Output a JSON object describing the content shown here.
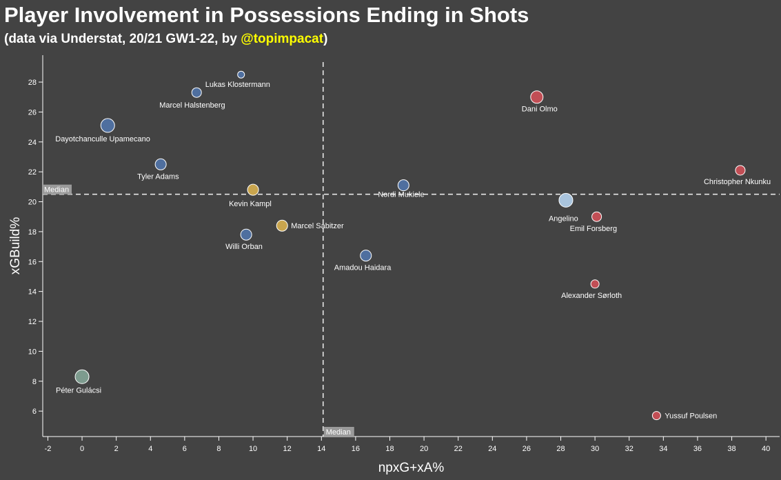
{
  "header": {
    "title": "Player Involvement in Possessions Ending in Shots",
    "subtitle_prefix": "(data via Understat, 20/21 GW1-22, by ",
    "subtitle_handle": "@topimpacat",
    "subtitle_suffix": ")"
  },
  "colors": {
    "background": "#434343",
    "handle": "#ffff00",
    "defender": "#4f6f9f",
    "midfielder": "#c9a54e",
    "forward": "#c14e55",
    "goalkeeper": "#7d9b8e",
    "angelino": "#a9c4dd"
  },
  "chart_data": {
    "type": "scatter",
    "xlabel": "npxG+xA%",
    "ylabel": "xGBuild%",
    "xlim": [
      -2.3,
      40.8
    ],
    "ylim": [
      4.3,
      29.8
    ],
    "xticks": [
      -2,
      0,
      2,
      4,
      6,
      8,
      10,
      12,
      14,
      16,
      18,
      20,
      22,
      24,
      26,
      28,
      30,
      32,
      34,
      36,
      38,
      40
    ],
    "yticks": [
      6,
      8,
      10,
      12,
      14,
      16,
      18,
      20,
      22,
      24,
      26,
      28
    ],
    "grid": false,
    "median_x": 14.1,
    "median_y": 20.5,
    "median_label": "Median",
    "points": [
      {
        "name": "Lukas Klostermann",
        "x": 9.3,
        "y": 28.5,
        "color": "#4f6f9f"
      },
      {
        "name": "Marcel Halstenberg",
        "x": 6.7,
        "y": 27.3,
        "color": "#4f6f9f"
      },
      {
        "name": "Dayotchanculle Upamecano",
        "x": 1.5,
        "y": 25.1,
        "color": "#4f6f9f"
      },
      {
        "name": "Tyler Adams",
        "x": 4.6,
        "y": 22.5,
        "color": "#4f6f9f"
      },
      {
        "name": "Kevin Kampl",
        "x": 10.0,
        "y": 20.8,
        "color": "#c9a54e"
      },
      {
        "name": "Marcel Sabitzer",
        "x": 11.7,
        "y": 18.4,
        "color": "#c9a54e"
      },
      {
        "name": "Willi Orban",
        "x": 9.6,
        "y": 17.8,
        "color": "#4f6f9f"
      },
      {
        "name": "Amadou Haidara",
        "x": 16.6,
        "y": 16.4,
        "color": "#4f6f9f"
      },
      {
        "name": "Nordi Mukiele",
        "x": 18.8,
        "y": 21.1,
        "color": "#4f6f9f"
      },
      {
        "name": "Dani Olmo",
        "x": 26.6,
        "y": 27.0,
        "color": "#c14e55"
      },
      {
        "name": "Christopher Nkunku",
        "x": 38.5,
        "y": 22.1,
        "color": "#c14e55"
      },
      {
        "name": "Angelino",
        "x": 28.3,
        "y": 20.1,
        "color": "#a9c4dd"
      },
      {
        "name": "Emil Forsberg",
        "x": 30.1,
        "y": 19.0,
        "color": "#c14e55"
      },
      {
        "name": "Alexander Sørloth",
        "x": 30.0,
        "y": 14.5,
        "color": "#c14e55"
      },
      {
        "name": "Yussuf Poulsen",
        "x": 33.6,
        "y": 5.7,
        "color": "#c14e55"
      },
      {
        "name": "Péter Gulácsi",
        "x": 0.0,
        "y": 8.3,
        "color": "#7d9b8e"
      }
    ]
  }
}
